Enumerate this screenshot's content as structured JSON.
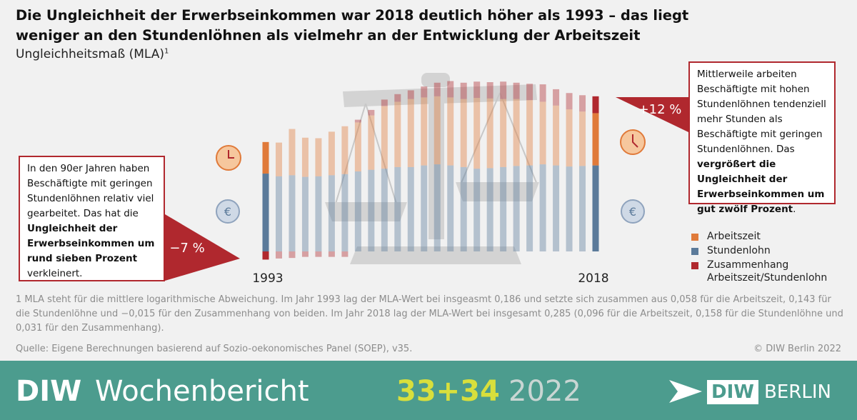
{
  "chart_data": {
    "type": "bar",
    "title": "Die Ungleichheit der Erwerbseinkommen war 2018 deutlich höher als 1993 – das liegt weniger an den Stundenlöhnen als vielmehr an der Entwicklung der Arbeitszeit",
    "subtitle": "Ungleichheitsmaß (MLA)",
    "subtitle_note": "1",
    "categories": [
      "1993",
      null,
      null,
      null,
      null,
      null,
      null,
      null,
      null,
      null,
      null,
      null,
      null,
      null,
      null,
      null,
      null,
      null,
      null,
      null,
      null,
      null,
      null,
      null,
      null,
      "2018"
    ],
    "series": [
      {
        "name": "Arbeitszeit",
        "color": "#e07a3a",
        "values": [
          0.058,
          0.062,
          0.085,
          0.072,
          0.07,
          0.08,
          0.088,
          0.09,
          0.1,
          0.115,
          0.12,
          0.125,
          0.125,
          0.125,
          0.125,
          0.125,
          0.13,
          0.128,
          0.125,
          0.123,
          0.12,
          0.115,
          0.11,
          0.105,
          0.1,
          0.096
        ]
      },
      {
        "name": "Stundenlohn",
        "color": "#5b7a9a",
        "values": [
          0.143,
          0.138,
          0.14,
          0.137,
          0.138,
          0.14,
          0.142,
          0.147,
          0.15,
          0.152,
          0.155,
          0.155,
          0.158,
          0.16,
          0.158,
          0.155,
          0.152,
          0.153,
          0.155,
          0.157,
          0.158,
          0.16,
          0.158,
          0.156,
          0.157,
          0.158
        ]
      },
      {
        "name": "Zusammenhang Arbeitszeit/Stundenlohn",
        "color": "#b0282e",
        "values": [
          -0.015,
          -0.013,
          -0.012,
          -0.01,
          -0.01,
          -0.01,
          -0.01,
          0.005,
          0.01,
          0.012,
          0.014,
          0.016,
          0.02,
          0.025,
          0.03,
          0.03,
          0.03,
          0.03,
          0.032,
          0.03,
          0.03,
          0.032,
          0.03,
          0.03,
          0.03,
          0.031
        ]
      }
    ],
    "annotations": {
      "left_change": "−7 %",
      "right_change": "+12 %",
      "left_text": [
        {
          "text": "In den 90er Jahren haben Beschäftigte mit geringen Stundenlöhnen relativ viel gearbeitet. Das hat die ",
          "bold": false
        },
        {
          "text": "Ungleichheit der Erwerbseinkommen um rund sieben Prozent",
          "bold": true
        },
        {
          "text": " verkleinert.",
          "bold": false
        }
      ],
      "right_text": [
        {
          "text": "Mittlerweile arbeiten Beschäftigte mit hohen Stundenlöhnen tendenziell mehr Stunden als Beschäf­tigte mit geringen Stun­denlöhnen. Das ",
          "bold": false
        },
        {
          "text": "vergrößert die Ungleichheit der Erwerbseinkommen um gut zwölf Prozent",
          "bold": true
        },
        {
          "text": ".",
          "bold": false
        }
      ]
    },
    "footnote": "1  MLA steht für die mittlere logarithmische Abweichung. Im Jahr 1993 lag der MLA-Wert bei insgeasmt 0,186 und setzte sich zusammen aus 0,058 für die Arbeitszeit, 0,143 für die Stundenlöhne und −0,015 für den Zusammenhang von beiden. Im Jahr 2018 lag der MLA-Wert bei insgesamt 0,285 (0,096 für die Arbeitszeit, 0,158 für die Stundenlöhne und 0,031 für den Zusammenhang).",
    "source": "Quelle: Eigene Berechnungen basierend auf Sozio-oekonomisches Panel (SOEP), v35.",
    "copyright": "© DIW Berlin 2022"
  },
  "banner": {
    "brand": "DIW",
    "publication": "Wochenbericht",
    "issue": "33+34",
    "year": "2022",
    "logo_a": "DIW",
    "logo_b": "BERLIN"
  }
}
